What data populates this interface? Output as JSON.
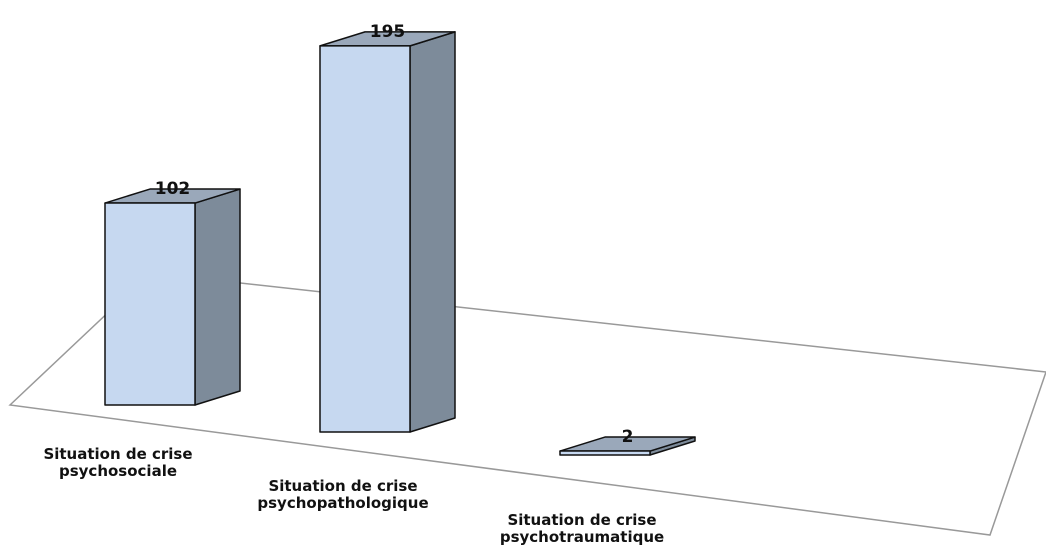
{
  "chart_data": {
    "type": "bar3d",
    "categories": [
      "Situation de crise psychosociale",
      "Situation de crise psychopathologique",
      "Situation de crise psychotraumatique"
    ],
    "values": [
      102,
      195,
      2
    ],
    "colors": {
      "front": "#c6d8f0",
      "side": "#7d8b9a",
      "top": "#9aa8ba"
    }
  }
}
